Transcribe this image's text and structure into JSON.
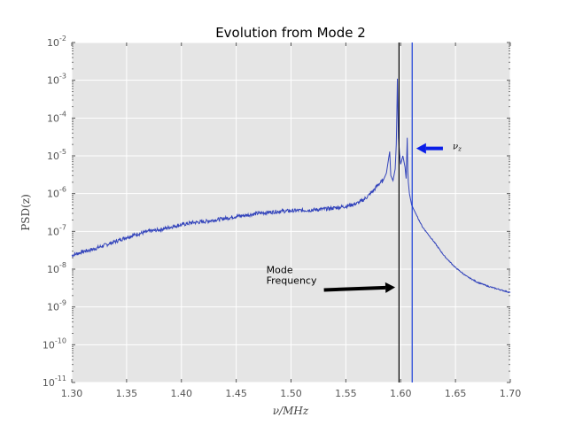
{
  "chart_data": {
    "type": "line",
    "title": "Evolution from Mode 2",
    "xlabel": "ν/MHz",
    "ylabel": "PSD(z)",
    "xlim": [
      1.3,
      1.7
    ],
    "ylim_exp": [
      -11,
      -2
    ],
    "yscale": "log",
    "grid": true,
    "x_ticks": [
      "1.30",
      "1.35",
      "1.40",
      "1.45",
      "1.50",
      "1.55",
      "1.60",
      "1.65",
      "1.70"
    ],
    "y_ticks": [
      {
        "base": "10",
        "exp": "-11"
      },
      {
        "base": "10",
        "exp": "-10"
      },
      {
        "base": "10",
        "exp": "-9"
      },
      {
        "base": "10",
        "exp": "-8"
      },
      {
        "base": "10",
        "exp": "-7"
      },
      {
        "base": "10",
        "exp": "-6"
      },
      {
        "base": "10",
        "exp": "-5"
      },
      {
        "base": "10",
        "exp": "-4"
      },
      {
        "base": "10",
        "exp": "-3"
      },
      {
        "base": "10",
        "exp": "-2"
      }
    ],
    "series": [
      {
        "color": "#3344bb",
        "x": [
          1.3,
          1.31,
          1.32,
          1.33,
          1.34,
          1.35,
          1.36,
          1.37,
          1.38,
          1.39,
          1.4,
          1.41,
          1.42,
          1.43,
          1.44,
          1.45,
          1.46,
          1.47,
          1.48,
          1.49,
          1.5,
          1.51,
          1.52,
          1.53,
          1.54,
          1.55,
          1.56,
          1.565,
          1.57,
          1.575,
          1.58,
          1.584,
          1.587,
          1.59,
          1.591,
          1.593,
          1.595,
          1.596,
          1.5965,
          1.597,
          1.5975,
          1.598,
          1.599,
          1.6,
          1.602,
          1.604,
          1.605,
          1.606,
          1.6065,
          1.607,
          1.608,
          1.61,
          1.615,
          1.62,
          1.63,
          1.64,
          1.65,
          1.66,
          1.67,
          1.68,
          1.69,
          1.7
        ],
        "y": [
          2.3e-08,
          2.9e-08,
          3.4e-08,
          4.3e-08,
          5.4e-08,
          7e-08,
          8.5e-08,
          1e-07,
          1.1e-07,
          1.3e-07,
          1.5e-07,
          1.7e-07,
          1.8e-07,
          2e-07,
          2.2e-07,
          2.5e-07,
          2.7e-07,
          3e-07,
          3.2e-07,
          3.4e-07,
          3.5e-07,
          3.6e-07,
          3.7e-07,
          3.9e-07,
          4.2e-07,
          4.6e-07,
          5.5e-07,
          6.5e-07,
          8.5e-07,
          1.2e-06,
          1.8e-06,
          2.2e-06,
          3.5e-06,
          1.3e-05,
          3e-06,
          2.2e-06,
          4.5e-06,
          2e-05,
          0.00012,
          0.0011,
          0.00015,
          3e-05,
          1.2e-05,
          6e-06,
          1e-05,
          5e-06,
          2.5e-06,
          3e-05,
          4e-06,
          2e-06,
          1e-06,
          5e-07,
          2.5e-07,
          1.3e-07,
          5.5e-08,
          2.2e-08,
          1.1e-08,
          6.5e-09,
          4.5e-09,
          3.5e-09,
          2.9e-09,
          2.4e-09
        ]
      }
    ],
    "vlines": [
      {
        "x": 1.5985,
        "color": "#000000"
      },
      {
        "x": 1.6105,
        "color": "#1a3fd9"
      }
    ],
    "annotations": [
      {
        "text_lines": [
          "Mode",
          "Frequency"
        ],
        "text_x": 1.4775,
        "text_y_exp": -8.1,
        "arrow_from_x": 1.53,
        "arrow_from_y_exp": -8.55,
        "arrow_to_x": 1.595,
        "arrow_to_y_exp": -8.48,
        "color": "#000000"
      },
      {
        "text": "νz",
        "text_x": 1.6475,
        "text_y_exp": -4.78,
        "arrow_from_x": 1.645,
        "arrow_from_y_exp": -4.78,
        "arrow_to_x": 1.611,
        "arrow_to_y_exp": -4.78,
        "color": "#0a1ee8"
      }
    ]
  }
}
